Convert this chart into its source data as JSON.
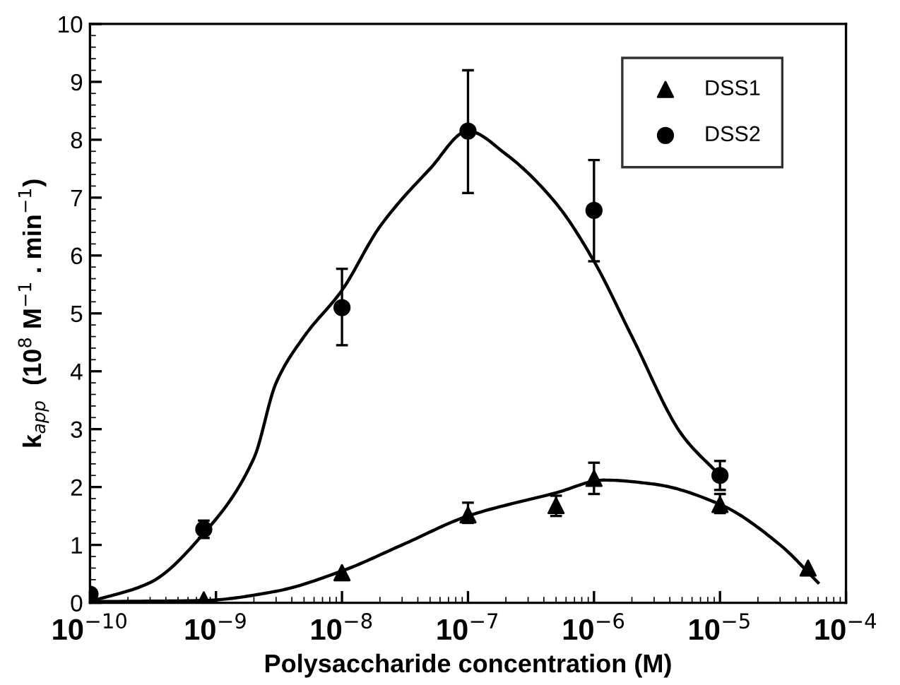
{
  "chart_data": {
    "type": "scatter",
    "xlabel": "Polysaccharide concentration (M)",
    "ylabel": "k$_{app}$  (10$^{8}$ M$^{−1}$ . min$^{−1}$)",
    "log": "x",
    "xlim": [
      1e-10,
      0.0001
    ],
    "xticks": [
      {
        "value": 1e-10,
        "label": "10$^{−10}$"
      },
      {
        "value": 1e-09,
        "label": "10$^{−9}$"
      },
      {
        "value": 1e-08,
        "label": "10$^{−8}$"
      },
      {
        "value": 1e-07,
        "label": "10$^{−7}$"
      },
      {
        "value": 1e-06,
        "label": "10$^{−6}$"
      },
      {
        "value": 1e-05,
        "label": "10$^{−5}$"
      },
      {
        "value": 0.0001,
        "label": "10$^{−4}$"
      }
    ],
    "ylim": [
      0,
      10
    ],
    "yticks": [
      0,
      1,
      2,
      3,
      4,
      5,
      6,
      7,
      8,
      9,
      10
    ],
    "grid": false,
    "legend": "top right",
    "series": [
      {
        "name": "DSS1",
        "marker": "triangle",
        "color": "#000000",
        "x": [
          8e-10,
          1e-08,
          1e-07,
          5e-07,
          1e-06,
          1e-05,
          5e-05
        ],
        "values": [
          0.05,
          0.52,
          1.52,
          1.68,
          2.15,
          1.7,
          0.6
        ],
        "errors": [
          null,
          null,
          [
            1.38,
            1.73
          ],
          [
            1.5,
            1.85
          ],
          [
            1.88,
            2.42
          ],
          [
            1.55,
            1.88
          ],
          null
        ]
      },
      {
        "name": "DSS2",
        "marker": "circle",
        "color": "#000000",
        "x": [
          1e-10,
          8e-10,
          1e-08,
          1e-07,
          1e-06,
          1e-05
        ],
        "values": [
          0.15,
          1.27,
          5.1,
          8.15,
          6.78,
          2.2
        ],
        "errors": [
          null,
          [
            1.12,
            1.42
          ],
          [
            4.45,
            5.77
          ],
          [
            7.08,
            9.2
          ],
          [
            5.9,
            7.65
          ],
          [
            1.95,
            2.45
          ]
        ]
      },
      {
        "type": "line",
        "marker": "none",
        "line_style": "solid",
        "color": "#000000",
        "x": [
          1e-10,
          8e-10,
          3e-09,
          1e-08,
          3e-08,
          1e-07,
          5e-07,
          1.2e-06,
          3e-06,
          1e-05,
          3e-05,
          6e-05
        ],
        "values": [
          0.02,
          0.04,
          0.2,
          0.55,
          1.0,
          1.5,
          1.9,
          2.12,
          2.05,
          1.7,
          1.0,
          0.35
        ]
      },
      {
        "type": "line",
        "marker": "none",
        "line_style": "solid",
        "color": "#000000",
        "x": [
          1e-10,
          3e-10,
          8e-10,
          2e-09,
          3e-09,
          5e-09,
          1e-08,
          2e-08,
          5e-08,
          1e-07,
          2e-07,
          5e-07,
          1e-06,
          2e-06,
          5e-06,
          1e-05
        ],
        "values": [
          0.02,
          0.35,
          1.2,
          2.5,
          3.8,
          4.6,
          5.4,
          6.5,
          7.5,
          8.15,
          7.75,
          6.9,
          5.9,
          4.6,
          2.9,
          2.2
        ]
      }
    ]
  }
}
